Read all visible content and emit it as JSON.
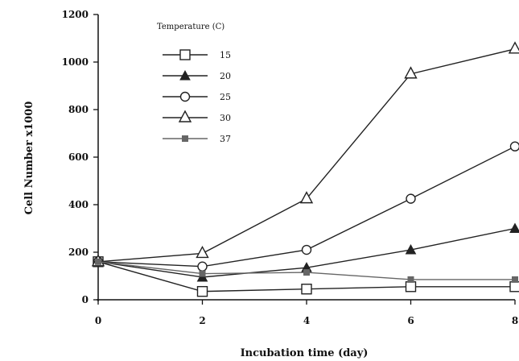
{
  "chart_data": {
    "type": "line",
    "title": "",
    "xlabel": "Incubation time (day)",
    "ylabel": "Cell Number  x1000",
    "xlim": [
      0,
      8
    ],
    "ylim": [
      0,
      1200
    ],
    "x_ticks": [
      "0",
      "2",
      "4",
      "6",
      "8"
    ],
    "y_ticks": [
      "0",
      "200",
      "400",
      "600",
      "800",
      "1000",
      "1200"
    ],
    "legend_title": "Temperature (C)",
    "legend_placement": "top-left",
    "grid": false,
    "series": [
      {
        "name": "15",
        "marker": "open-square",
        "color": "#222222",
        "x": [
          0,
          2,
          4,
          6,
          8
        ],
        "y": [
          160,
          35,
          45,
          55,
          55
        ]
      },
      {
        "name": "20",
        "marker": "filled-triangle",
        "color": "#222222",
        "x": [
          0,
          2,
          4,
          6,
          8
        ],
        "y": [
          160,
          95,
          135,
          210,
          300
        ]
      },
      {
        "name": "25",
        "marker": "open-circle",
        "color": "#222222",
        "x": [
          0,
          2,
          4,
          6,
          8
        ],
        "y": [
          160,
          140,
          210,
          425,
          645
        ]
      },
      {
        "name": "30",
        "marker": "open-triangle",
        "color": "#222222",
        "x": [
          0,
          2,
          4,
          6,
          8
        ],
        "y": [
          160,
          195,
          425,
          950,
          1055
        ]
      },
      {
        "name": "37",
        "marker": "small-filled-square",
        "color": "#666666",
        "x": [
          0,
          2,
          4,
          6,
          8
        ],
        "y": [
          160,
          110,
          115,
          85,
          85
        ]
      }
    ]
  }
}
